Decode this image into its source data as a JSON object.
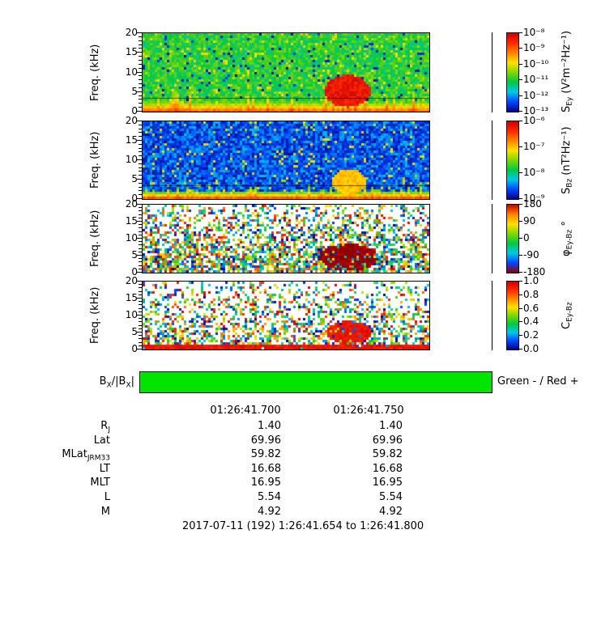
{
  "caption": "2017-07-11 (192) 1:26:41.654 to 1:26:41.800",
  "xaxis": {
    "ticks": [
      "01:26:41.700",
      "01:26:41.750"
    ]
  },
  "polarity_bar": {
    "label": {
      "p1": "B",
      "s1": "X",
      "p2": "/|B",
      "s2": "X",
      "p3": "|"
    },
    "legend": "Green - / Red +",
    "color": "#00e400"
  },
  "ephemeris": {
    "rows": [
      {
        "label": "R",
        "sub": "J",
        "v1": "1.40",
        "v2": "1.40"
      },
      {
        "label": "Lat",
        "sub": "",
        "v1": "69.96",
        "v2": "69.96"
      },
      {
        "label": "MLat",
        "sub": "JRM33",
        "v1": "59.82",
        "v2": "59.82"
      },
      {
        "label": "LT",
        "sub": "",
        "v1": "16.68",
        "v2": "16.68"
      },
      {
        "label": "MLT",
        "sub": "",
        "v1": "16.95",
        "v2": "16.95"
      },
      {
        "label": "L",
        "sub": "",
        "v1": "5.54",
        "v2": "5.54"
      },
      {
        "label": "M",
        "sub": "",
        "v1": "4.92",
        "v2": "4.92"
      }
    ]
  },
  "chart_data": [
    {
      "type": "heatmap",
      "quantity": "S_Ey electric power spectral density",
      "ylabel": "Freq. (kHz)",
      "ylim": [
        0,
        20
      ],
      "yticks": [
        0,
        5,
        10,
        15,
        20
      ],
      "colorbar": {
        "sym": "S",
        "sub": "Ey",
        "rest": " (V²m⁻²Hz⁻¹)",
        "scale": "log",
        "ticks": [
          "10⁻⁸",
          "10⁻⁹",
          "10⁻¹⁰",
          "10⁻¹¹",
          "10⁻¹²",
          "10⁻¹³"
        ],
        "gradient": [
          "#c80000",
          "#ff2800",
          "#ff8200",
          "#ffe100",
          "#82d700",
          "#00c846",
          "#00c8e6",
          "#0046ff",
          "#0a0082"
        ]
      },
      "texture": {
        "mode": "filled",
        "seed": 7,
        "base": 0.47,
        "noise": 0.1,
        "darkProb": 0.05,
        "lightProb": 0.07,
        "band": {
          "fmax": 2.8,
          "value": 0.92,
          "jitter": 0.1,
          "streakProb": 0.3,
          "streakMax": 1.2
        },
        "blob": {
          "t": 0.715,
          "f": 5.5,
          "rt": 0.08,
          "rf": 4.0,
          "value": 0.94
        },
        "hline_kHz": 3.5
      }
    },
    {
      "type": "heatmap",
      "quantity": "S_Bz magnetic power spectral density",
      "ylabel": "Freq. (kHz)",
      "ylim": [
        0,
        20
      ],
      "yticks": [
        0,
        5,
        10,
        15,
        20
      ],
      "colorbar": {
        "sym": "S",
        "sub": "Bz",
        "rest": " (nT²Hz⁻¹)",
        "scale": "log",
        "ticks": [
          "10⁻⁶",
          "10⁻⁷",
          "10⁻⁸",
          "10⁻⁹"
        ],
        "gradient": [
          "#c80000",
          "#ff2800",
          "#ff8200",
          "#ffe100",
          "#82d700",
          "#00c846",
          "#00c8e6",
          "#0046ff",
          "#0a0082"
        ]
      },
      "texture": {
        "mode": "filled",
        "seed": 13,
        "base": 0.17,
        "noise": 0.12,
        "darkProb": 0.22,
        "lightProb": 0.06,
        "band": {
          "fmax": 1.8,
          "value": 0.9,
          "jitter": 0.08,
          "streakProb": 0.22,
          "streakMax": 1.0
        },
        "blob": {
          "t": 0.72,
          "f": 4.5,
          "rt": 0.06,
          "rf": 3.2,
          "value": 0.72
        },
        "hline_kHz": 3.5
      }
    },
    {
      "type": "heatmap",
      "quantity": "phase Ey-Bz",
      "ylabel": "Freq. (kHz)",
      "ylim": [
        0,
        20
      ],
      "yticks": [
        0,
        5,
        10,
        15,
        20
      ],
      "colorbar": {
        "sym": "φ",
        "sub": "Ey-Bz",
        "rest": " °",
        "scale": "linear",
        "ticks": [
          "180",
          "90",
          "0",
          "-90",
          "-180"
        ],
        "gradient": [
          "#c80000",
          "#ff8200",
          "#ffe100",
          "#82d700",
          "#00c846",
          "#00c8e6",
          "#0046ff",
          "#8c0000"
        ]
      },
      "texture": {
        "mode": "sparse",
        "seed": 21,
        "densityTop": 0.3,
        "densityBottom": 0.8,
        "blob": {
          "t": 0.72,
          "f": 4.5,
          "rt": 0.1,
          "rf": 4.0
        },
        "blobColor": "#8c0000",
        "blobProb": 0.8
      }
    },
    {
      "type": "heatmap",
      "quantity": "coherence Ey-Bz",
      "ylabel": "Freq. (kHz)",
      "ylim": [
        0,
        20
      ],
      "yticks": [
        0,
        5,
        10,
        15,
        20
      ],
      "colorbar": {
        "sym": "C",
        "sub": "Ey-Bz",
        "rest": "",
        "scale": "linear",
        "ticks": [
          "1.0",
          "0.8",
          "0.6",
          "0.4",
          "0.2",
          "0.0"
        ],
        "gradient": [
          "#c80000",
          "#ff2800",
          "#ff8200",
          "#ffe100",
          "#82d700",
          "#00c846",
          "#00c8e6",
          "#0046ff",
          "#0a0082"
        ]
      },
      "texture": {
        "mode": "sparse",
        "seed": 29,
        "densityTop": 0.22,
        "densityBottom": 0.6,
        "band": {
          "fmax": 1.6,
          "density": 0.95,
          "value": 0.94
        },
        "blob": {
          "t": 0.72,
          "f": 5.0,
          "rt": 0.08,
          "rf": 3.4,
          "value": 0.94
        },
        "blobProb": 0.85
      }
    }
  ]
}
